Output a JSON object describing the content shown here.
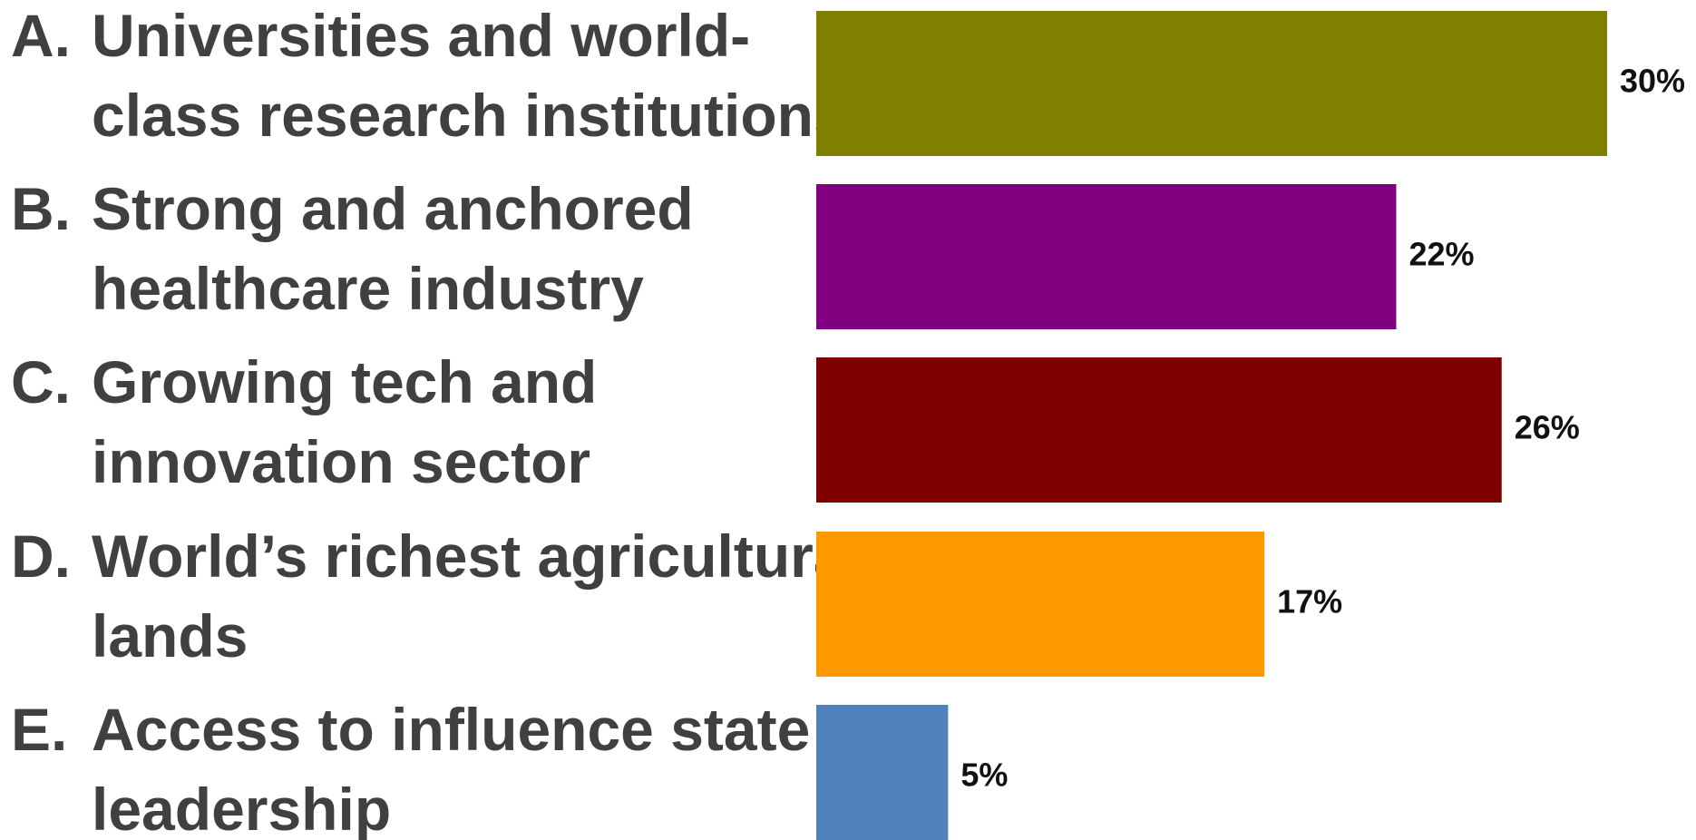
{
  "chart_data": {
    "type": "bar",
    "orientation": "horizontal",
    "categories": [
      "A. Universities and world-class research institutions",
      "B. Strong and anchored healthcare industry",
      "C. Growing tech and innovation sector",
      "D. World’s richest agricultural lands",
      "E. Access to influence state leadership"
    ],
    "options": [
      {
        "letter": "A.",
        "lines": [
          "Universities and world-",
          "class research institutions"
        ],
        "value": 30,
        "value_label": "30%",
        "color": "#808000"
      },
      {
        "letter": "B.",
        "lines": [
          "Strong and anchored",
          "healthcare industry"
        ],
        "value": 22,
        "value_label": "22%",
        "color": "#800080"
      },
      {
        "letter": "C.",
        "lines": [
          "Growing tech and",
          "innovation sector"
        ],
        "value": 26,
        "value_label": "26%",
        "color": "#800000"
      },
      {
        "letter": "D.",
        "lines": [
          "World’s richest agricultural",
          "lands"
        ],
        "value": 17,
        "value_label": "17%",
        "color": "#FF9900"
      },
      {
        "letter": "E.",
        "lines": [
          "Access to influence state",
          "leadership"
        ],
        "value": 5,
        "value_label": "5%",
        "color": "#4F81BD"
      }
    ],
    "values": [
      30,
      22,
      26,
      17,
      5
    ],
    "value_unit": "%",
    "xlim": [
      0,
      30
    ],
    "grid": false,
    "legend": "none",
    "title": "",
    "xlabel": "",
    "ylabel": ""
  }
}
